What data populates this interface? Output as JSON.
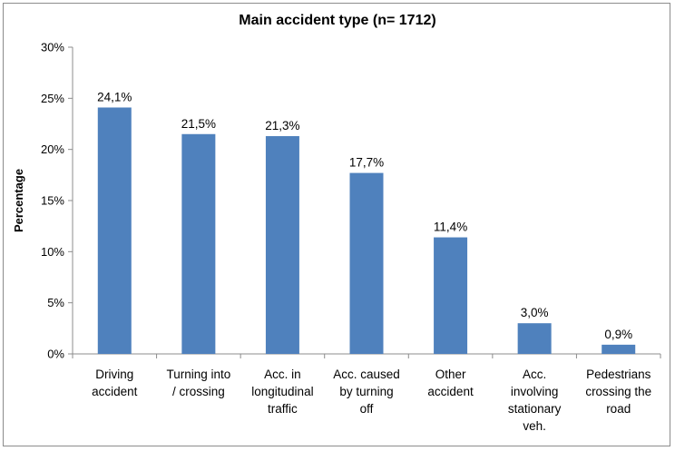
{
  "chart_data": {
    "type": "bar",
    "title": "Main accident type (n= 1712)",
    "ylabel": "Percentage",
    "xlabel": "",
    "ylim": [
      0,
      30
    ],
    "yticks": [
      "0%",
      "5%",
      "10%",
      "15%",
      "20%",
      "25%",
      "30%"
    ],
    "categories": [
      [
        "Driving",
        "accident"
      ],
      [
        "Turning into",
        "/ crossing"
      ],
      [
        "Acc. in",
        "longitudinal",
        "traffic"
      ],
      [
        "Acc. caused",
        "by turning",
        "off"
      ],
      [
        "Other",
        "accident"
      ],
      [
        "Acc.",
        "involving",
        "stationary",
        "veh."
      ],
      [
        "Pedestrians",
        "crossing the",
        "road"
      ]
    ],
    "values": [
      24.1,
      21.5,
      21.3,
      17.7,
      11.4,
      3.0,
      0.9
    ],
    "data_labels": [
      "24,1%",
      "21,5%",
      "21,3%",
      "17,7%",
      "11,4%",
      "3,0%",
      "0,9%"
    ],
    "grid": false,
    "legend": "none",
    "bar_color": "#4f81bd"
  }
}
